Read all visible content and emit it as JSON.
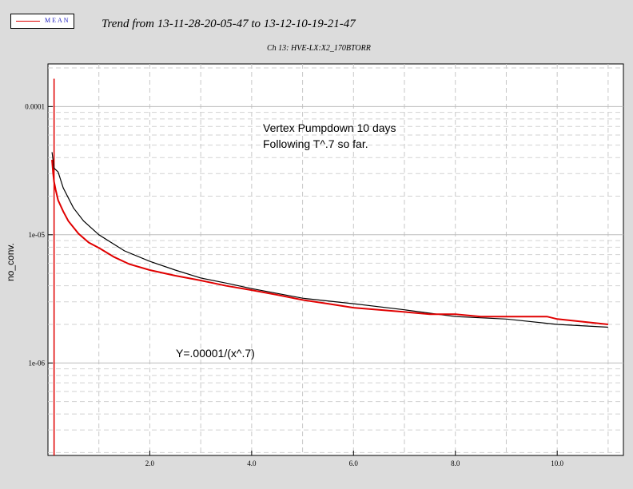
{
  "legend": {
    "label": "MEAN",
    "color": "#e00000"
  },
  "title": "Trend from 13-11-28-20-05-47 to 13-12-10-19-21-47",
  "subtitle": "Ch 13: HVE-LX:X2_170BTORR",
  "chart_data": {
    "type": "line",
    "title": "Trend from 13-11-28-20-05-47 to 13-12-10-19-21-47",
    "subtitle": "Ch 13: HVE-LX:X2_170BTORR",
    "xlabel": "",
    "ylabel": "no_conv.",
    "xlim": [
      0.0,
      11.3
    ],
    "ylim": [
      1.9e-07,
      0.000215
    ],
    "yscale": "log",
    "grid": true,
    "legend_position": "top-left",
    "x_ticks": [
      "2.0",
      "4.0",
      "6.0",
      "8.0",
      "10.0"
    ],
    "x_tick_values": [
      2.0,
      4.0,
      6.0,
      8.0,
      10.0
    ],
    "y_ticks": [
      "0.0001",
      "1e-05",
      "1e-06"
    ],
    "y_tick_values": [
      0.0001,
      1e-05,
      1e-06
    ],
    "annotations": [
      "Vertex Pumpdown 10 days",
      "Following T^.7 so far.",
      "Y=.00001/(x^.7)"
    ],
    "series": [
      {
        "name": "MEAN",
        "color": "#e00000",
        "x": [
          0.08,
          0.1,
          0.12,
          0.15,
          0.2,
          0.3,
          0.4,
          0.6,
          0.8,
          1.0,
          1.3,
          1.6,
          2.0,
          2.5,
          3.0,
          3.5,
          4.0,
          4.5,
          5.0,
          5.5,
          6.0,
          6.5,
          7.0,
          7.5,
          8.0,
          8.5,
          9.0,
          9.5,
          9.8,
          10.0,
          10.5,
          11.0
        ],
        "y": [
          3.84e-05,
          3.05e-05,
          2.6e-05,
          2.25e-05,
          1.86e-05,
          1.52e-05,
          1.28e-05,
          1.02e-05,
          8.7e-06,
          7.9e-06,
          6.7e-06,
          5.9e-06,
          5.3e-06,
          4.8e-06,
          4.4e-06,
          4e-06,
          3.7e-06,
          3.4e-06,
          3.1e-06,
          2.9e-06,
          2.7e-06,
          2.6e-06,
          2.5e-06,
          2.4e-06,
          2.4e-06,
          2.3e-06,
          2.3e-06,
          2.3e-06,
          2.3e-06,
          2.2e-06,
          2.1e-06,
          2e-06
        ]
      },
      {
        "name": "",
        "color": "#000000",
        "x": [
          0.08,
          0.12,
          0.2,
          0.3,
          0.5,
          0.7,
          1.0,
          1.5,
          2.0,
          2.5,
          3.0,
          3.5,
          4.0,
          5.0,
          6.0,
          7.0,
          8.0,
          9.0,
          10.0,
          11.0
        ],
        "y": [
          4.41e-05,
          3.31e-05,
          3.09e-05,
          2.32e-05,
          1.62e-05,
          1.28e-05,
          1e-05,
          7.5e-06,
          6.2e-06,
          5.3e-06,
          4.6e-06,
          4.2e-06,
          3.8e-06,
          3.2e-06,
          2.9e-06,
          2.6e-06,
          2.3e-06,
          2.2e-06,
          2e-06,
          1.9e-06
        ]
      }
    ],
    "spike": {
      "x": 0.12,
      "y_range": [
        1.9e-07,
        0.000165
      ]
    }
  }
}
